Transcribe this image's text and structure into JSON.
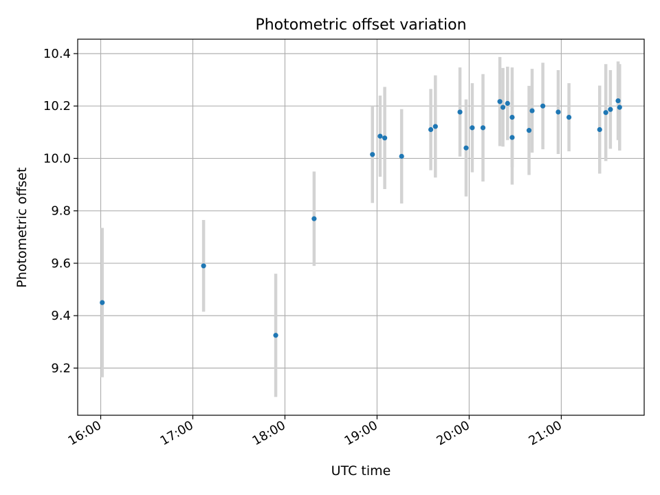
{
  "chart_data": {
    "type": "scatter",
    "title": "Photometric offset variation",
    "xlabel": "UTC time",
    "ylabel": "Photometric offset",
    "xlim": [
      "15:45",
      "21:54"
    ],
    "ylim": [
      9.02,
      10.455
    ],
    "grid": true,
    "x_ticks": [
      "16:00",
      "17:00",
      "18:00",
      "19:00",
      "20:00",
      "21:00"
    ],
    "y_ticks": [
      "9.2",
      "9.4",
      "9.6",
      "9.8",
      "10.0",
      "10.2",
      "10.4"
    ],
    "point_color": "#1f77b4",
    "errorbar_color": "#d3d3d3",
    "points": [
      {
        "t": "16:01",
        "y": 9.45,
        "err": 0.285
      },
      {
        "t": "17:07",
        "y": 9.59,
        "err": 0.175
      },
      {
        "t": "17:54",
        "y": 9.325,
        "err": 0.235
      },
      {
        "t": "18:19",
        "y": 9.77,
        "err": 0.18
      },
      {
        "t": "18:57",
        "y": 10.015,
        "err": 0.185
      },
      {
        "t": "19:02",
        "y": 10.085,
        "err": 0.155
      },
      {
        "t": "19:05",
        "y": 10.078,
        "err": 0.195
      },
      {
        "t": "19:16",
        "y": 10.008,
        "err": 0.18
      },
      {
        "t": "19:35",
        "y": 10.11,
        "err": 0.155
      },
      {
        "t": "19:38",
        "y": 10.122,
        "err": 0.195
      },
      {
        "t": "19:54",
        "y": 10.177,
        "err": 0.17
      },
      {
        "t": "19:58",
        "y": 10.04,
        "err": 0.185
      },
      {
        "t": "20:02",
        "y": 10.117,
        "err": 0.17
      },
      {
        "t": "20:09",
        "y": 10.117,
        "err": 0.205
      },
      {
        "t": "20:20",
        "y": 10.217,
        "err": 0.17
      },
      {
        "t": "20:22",
        "y": 10.195,
        "err": 0.15
      },
      {
        "t": "20:25",
        "y": 10.21,
        "err": 0.14
      },
      {
        "t": "20:28",
        "y": 10.08,
        "err": 0.18
      },
      {
        "t": "20:28",
        "y": 10.157,
        "err": 0.19
      },
      {
        "t": "20:39",
        "y": 10.107,
        "err": 0.17
      },
      {
        "t": "20:41",
        "y": 10.182,
        "err": 0.16
      },
      {
        "t": "20:48",
        "y": 10.2,
        "err": 0.165
      },
      {
        "t": "20:58",
        "y": 10.177,
        "err": 0.16
      },
      {
        "t": "21:05",
        "y": 10.157,
        "err": 0.13
      },
      {
        "t": "21:25",
        "y": 10.11,
        "err": 0.168
      },
      {
        "t": "21:29",
        "y": 10.175,
        "err": 0.185
      },
      {
        "t": "21:32",
        "y": 10.187,
        "err": 0.15
      },
      {
        "t": "21:37",
        "y": 10.22,
        "err": 0.15
      },
      {
        "t": "21:38",
        "y": 10.195,
        "err": 0.165
      }
    ]
  }
}
